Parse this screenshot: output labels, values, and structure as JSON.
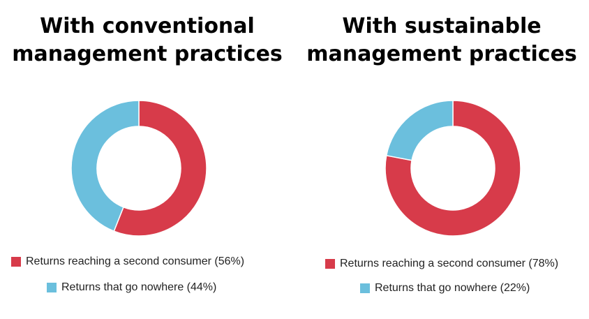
{
  "colors": {
    "second_consumer": "#d73b4a",
    "nowhere": "#6bbfdd"
  },
  "chart_data": [
    {
      "type": "pie",
      "title": [
        "With conventional",
        "management practices"
      ],
      "categories": [
        "Returns reaching a second consumer",
        "Returns that go nowhere"
      ],
      "values": [
        56,
        44
      ],
      "legend_labels": [
        "Returns reaching a second consumer (56%)",
        "Returns that go nowhere (44%)"
      ]
    },
    {
      "type": "pie",
      "title": [
        "With sustainable",
        "management practices"
      ],
      "categories": [
        "Returns reaching a second consumer",
        "Returns that go nowhere"
      ],
      "values": [
        78,
        22
      ],
      "legend_labels": [
        "Returns reaching a second consumer (78%)",
        "Returns that go nowhere (22%)"
      ]
    }
  ]
}
